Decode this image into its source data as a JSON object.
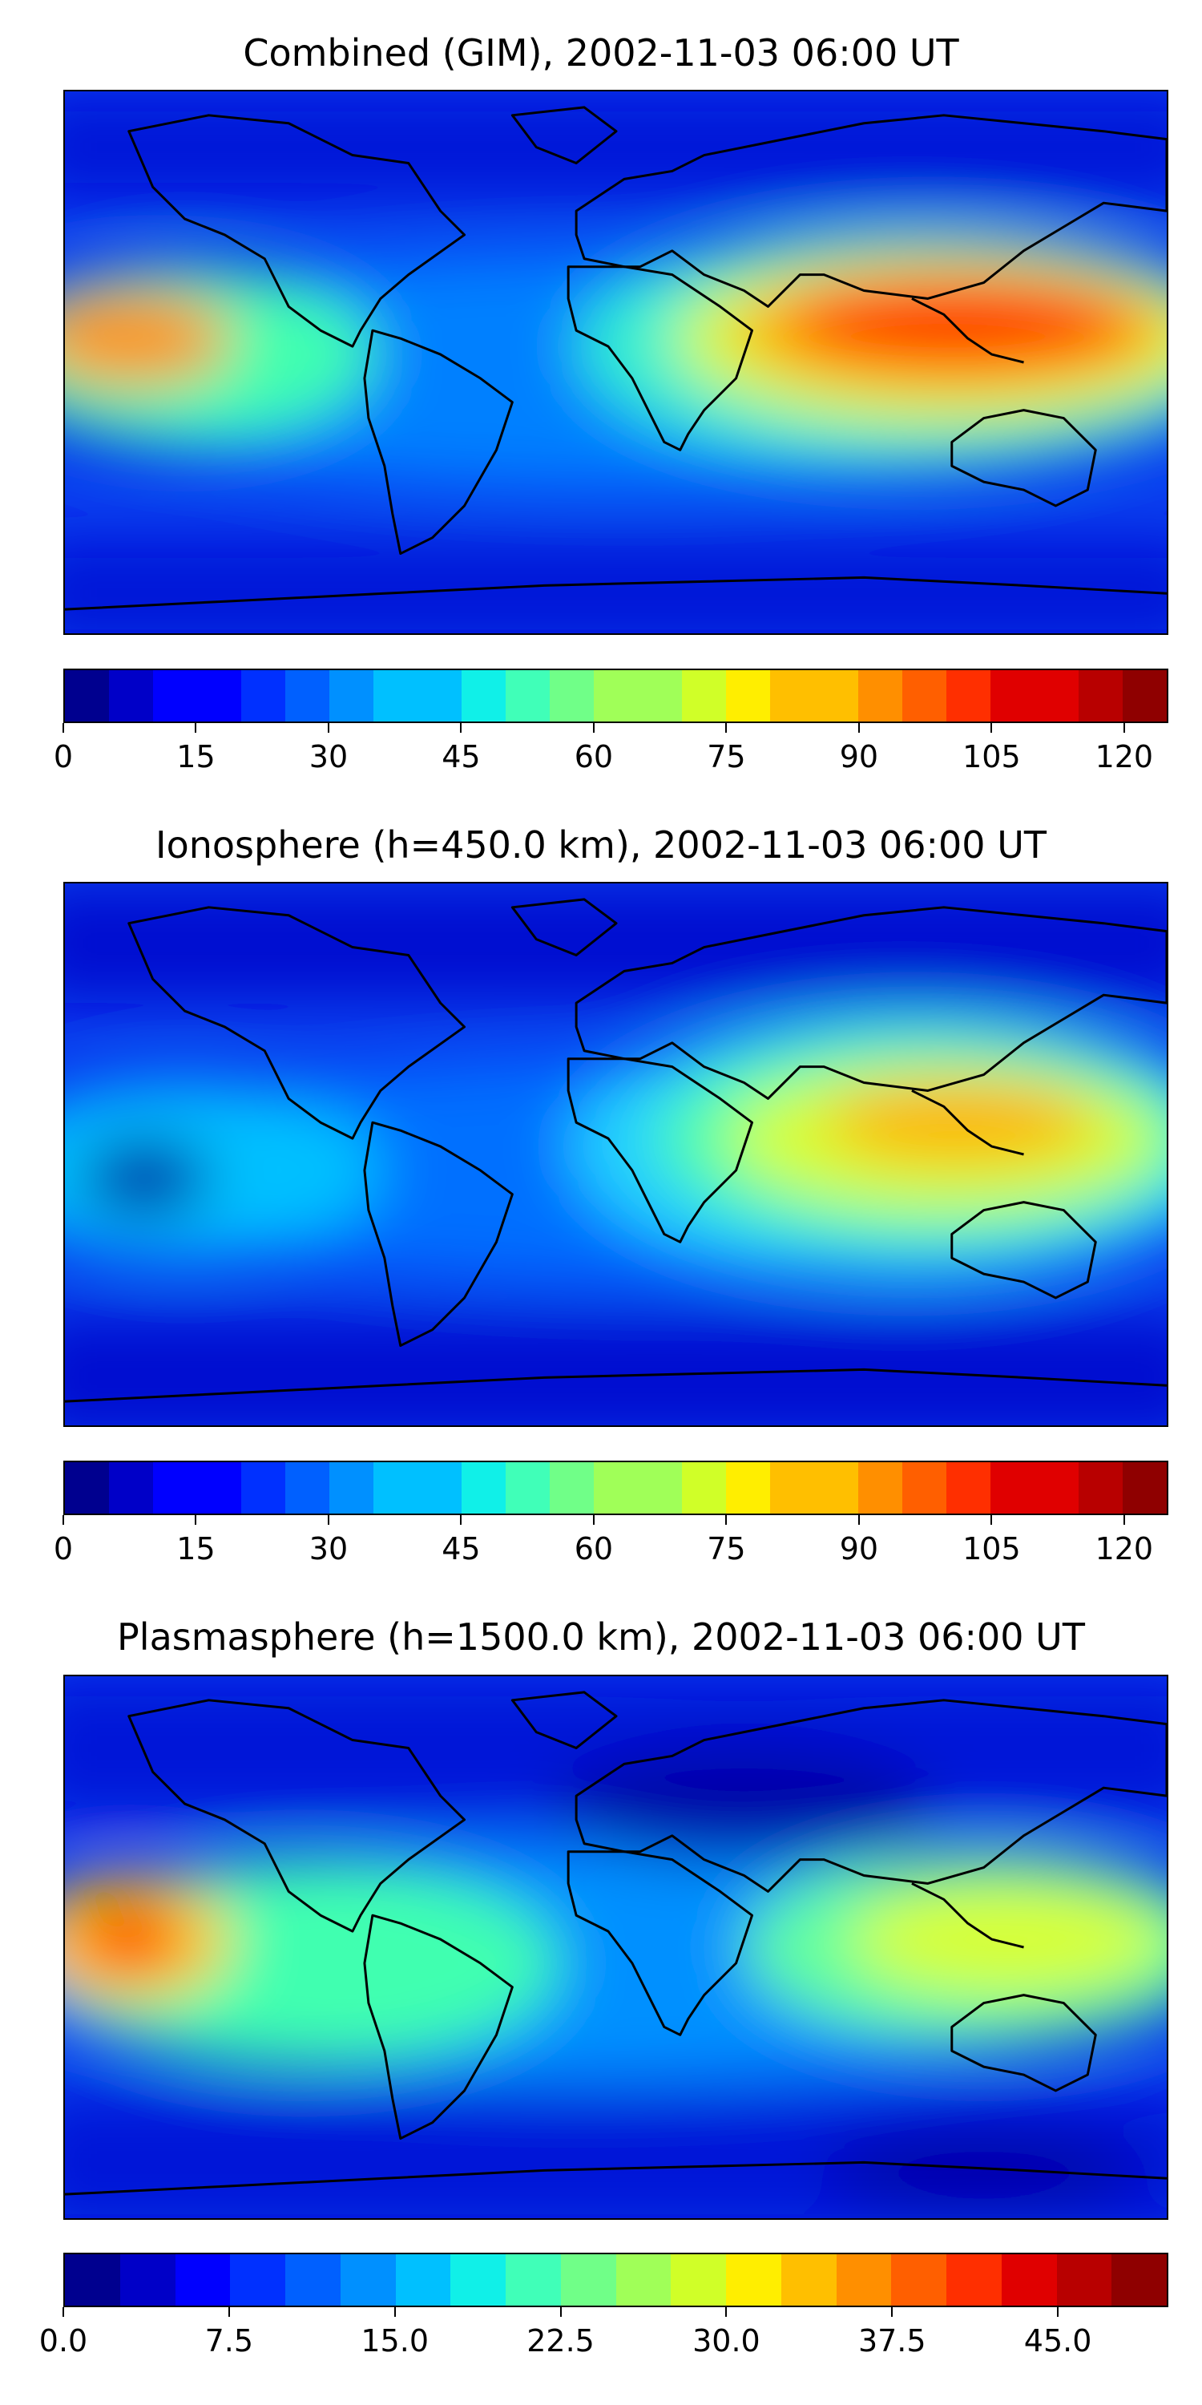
{
  "panels": [
    {
      "title": "Combined (GIM), 2002-11-03 06:00 UT",
      "colorbar_ticks": [
        "0",
        "15",
        "30",
        "45",
        "60",
        "75",
        "90",
        "105",
        "120"
      ],
      "colorbar_min": 0,
      "colorbar_max": 125,
      "colorbar_step": 5
    },
    {
      "title": "Ionosphere  (h=450.0 km), 2002-11-03 06:00 UT",
      "colorbar_ticks": [
        "0",
        "15",
        "30",
        "45",
        "60",
        "75",
        "90",
        "105",
        "120"
      ],
      "colorbar_min": 0,
      "colorbar_max": 125,
      "colorbar_step": 5
    },
    {
      "title": "Plasmasphere (h=1500.0 km), 2002-11-03 06:00 UT",
      "colorbar_ticks": [
        "0.0",
        "7.5",
        "15.0",
        "22.5",
        "30.0",
        "37.5",
        "45.0"
      ],
      "colorbar_min": 0,
      "colorbar_max": 50,
      "colorbar_step": 2.5
    }
  ],
  "colormap": [
    "#00008f",
    "#0000c8",
    "#0000ff",
    "#0030ff",
    "#0060ff",
    "#0090ff",
    "#00c0ff",
    "#10f0e8",
    "#40ffb8",
    "#70ff88",
    "#a0ff58",
    "#d0ff28",
    "#ffee00",
    "#ffbf00",
    "#ff8f00",
    "#ff5f00",
    "#ff2f00",
    "#e00000",
    "#b80000",
    "#8f0000"
  ],
  "map_background": "#0a3cf0",
  "coastline_color": "#000000"
}
